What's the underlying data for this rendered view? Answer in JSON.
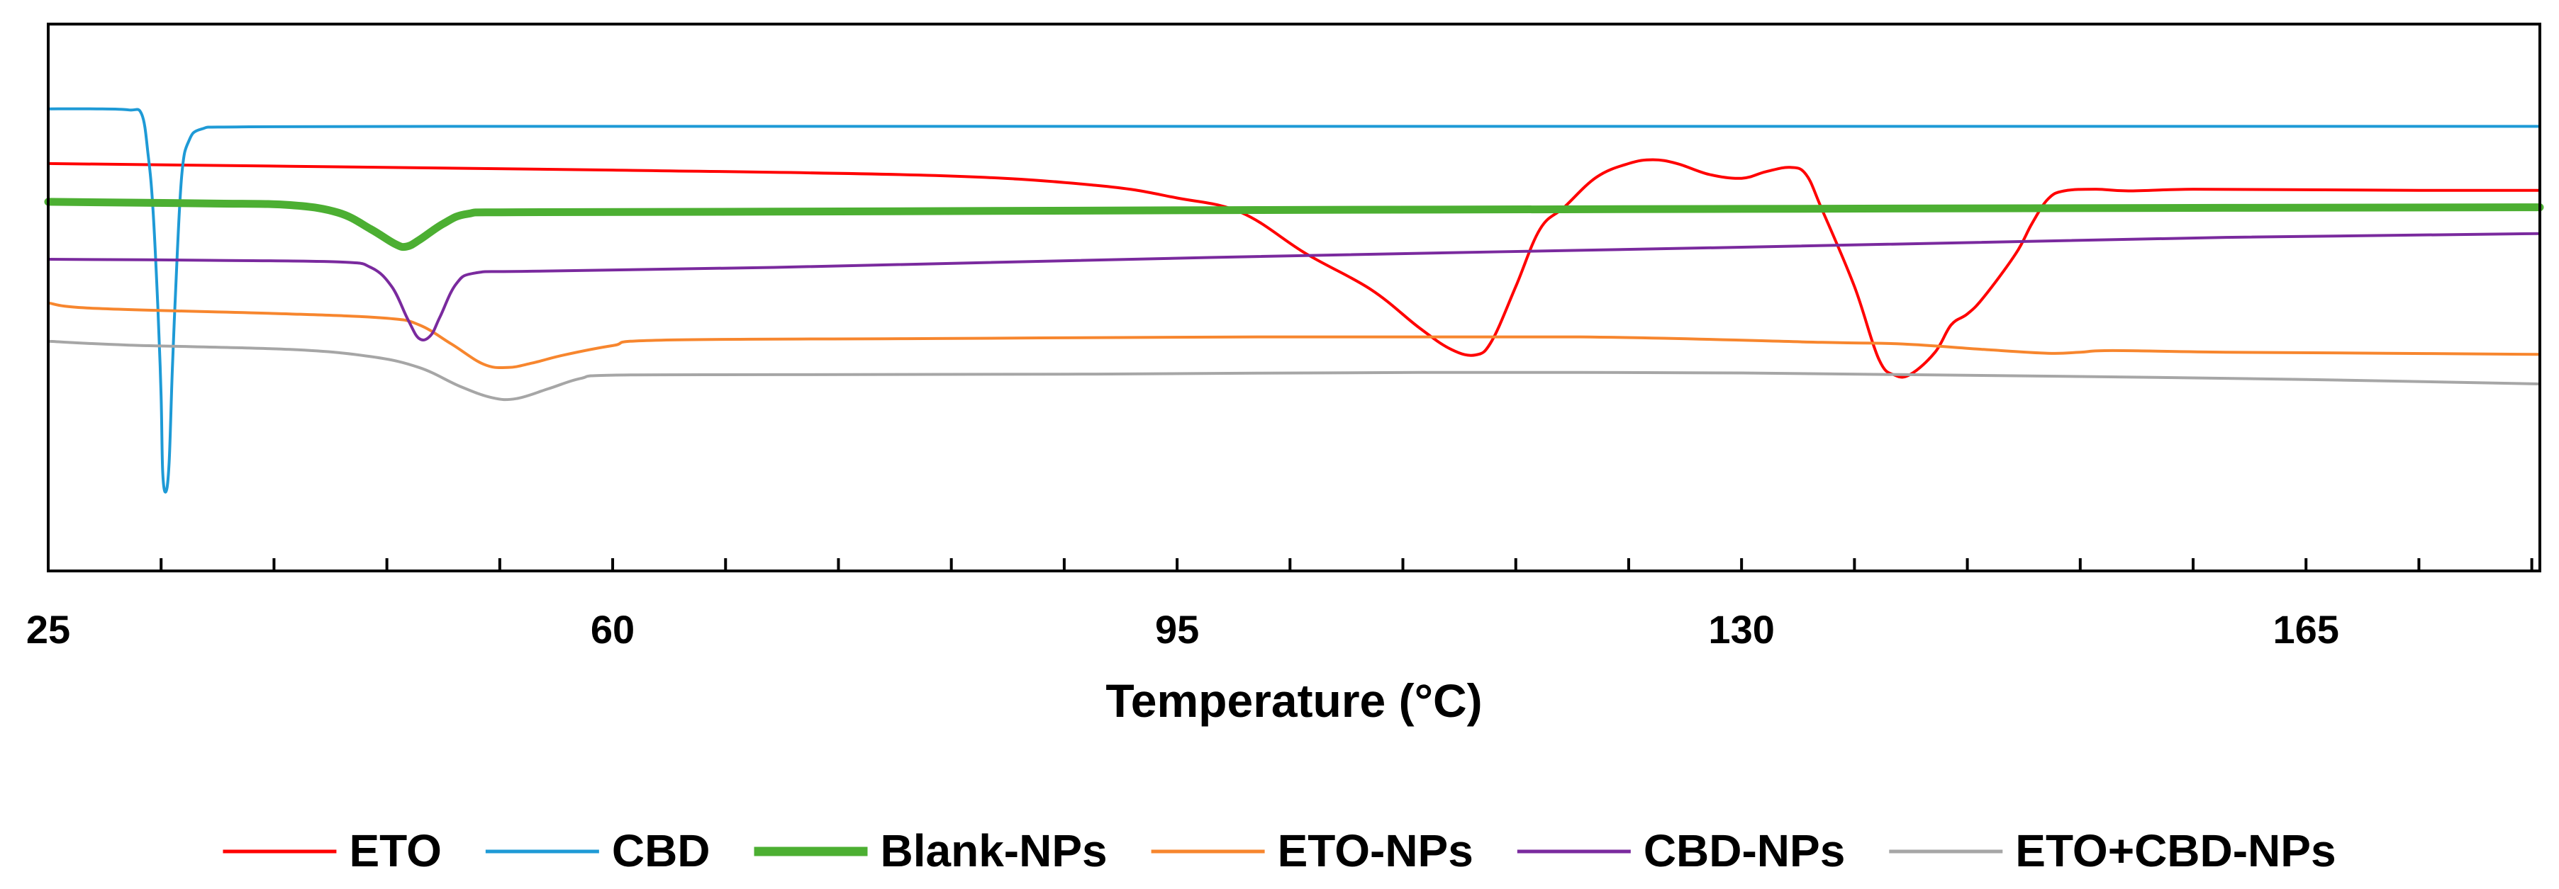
{
  "chart_data": {
    "type": "line",
    "title": "",
    "xlabel": "Temperature (°C)",
    "ylabel": "",
    "xlim": [
      25,
      179.5
    ],
    "ylim": [
      0,
      100
    ],
    "x_ticks": [
      25,
      60,
      95,
      130,
      165
    ],
    "minor_tick_step": 7,
    "grid": false,
    "legend_position": "bottom",
    "series": [
      {
        "name": "ETO",
        "color": "#ff0000",
        "weight": "normal",
        "points": [
          [
            25,
            74.5
          ],
          [
            40,
            74
          ],
          [
            60,
            73.3
          ],
          [
            80,
            72.3
          ],
          [
            90,
            70.5
          ],
          [
            95,
            68.2
          ],
          [
            99,
            65.5
          ],
          [
            103,
            58
          ],
          [
            107,
            51.5
          ],
          [
            110,
            44.5
          ],
          [
            112,
            40.5
          ],
          [
            113.5,
            39.5
          ],
          [
            114.5,
            42
          ],
          [
            116,
            52
          ],
          [
            117.5,
            62.5
          ],
          [
            119,
            66.5
          ],
          [
            121,
            72
          ],
          [
            123,
            74.5
          ],
          [
            124.5,
            75.2
          ],
          [
            126,
            74.5
          ],
          [
            128,
            72.5
          ],
          [
            130,
            71.8
          ],
          [
            131.5,
            73
          ],
          [
            133,
            73.8
          ],
          [
            134,
            72.5
          ],
          [
            135,
            66
          ],
          [
            137,
            52
          ],
          [
            138.5,
            38.8
          ],
          [
            139.5,
            35.8
          ],
          [
            140.5,
            36
          ],
          [
            142,
            40
          ],
          [
            143,
            45
          ],
          [
            144,
            47
          ],
          [
            145,
            50
          ],
          [
            147,
            58
          ],
          [
            148,
            63.5
          ],
          [
            149,
            68
          ],
          [
            150,
            69.5
          ],
          [
            152,
            69.8
          ],
          [
            154,
            69.5
          ],
          [
            158,
            69.8
          ],
          [
            165,
            69.7
          ],
          [
            172,
            69.6
          ],
          [
            179.5,
            69.6
          ]
        ]
      },
      {
        "name": "CBD",
        "color": "#1e9ad6",
        "weight": "normal",
        "points": [
          [
            25,
            84.5
          ],
          [
            28,
            84.5
          ],
          [
            30,
            84.3
          ],
          [
            30.8,
            83.5
          ],
          [
            31.2,
            76
          ],
          [
            31.5,
            66
          ],
          [
            31.8,
            48
          ],
          [
            32,
            32
          ],
          [
            32.1,
            18
          ],
          [
            32.3,
            14.5
          ],
          [
            32.5,
            20
          ],
          [
            32.7,
            37
          ],
          [
            33,
            58
          ],
          [
            33.3,
            73
          ],
          [
            33.7,
            78.5
          ],
          [
            34.5,
            80.8
          ],
          [
            37,
            81.2
          ],
          [
            50,
            81.3
          ],
          [
            80,
            81.3
          ],
          [
            120,
            81.3
          ],
          [
            179.5,
            81.3
          ]
        ]
      },
      {
        "name": "Blank-NPs",
        "color": "#4caf32",
        "weight": "thick",
        "points": [
          [
            25,
            67.5
          ],
          [
            35,
            67.2
          ],
          [
            40,
            66.9
          ],
          [
            43,
            65.5
          ],
          [
            45,
            62.5
          ],
          [
            46.5,
            59.8
          ],
          [
            47.2,
            59.3
          ],
          [
            48,
            60.5
          ],
          [
            49.5,
            63.5
          ],
          [
            51,
            65.3
          ],
          [
            54,
            65.6
          ],
          [
            70,
            65.7
          ],
          [
            100,
            66
          ],
          [
            130,
            66.2
          ],
          [
            160,
            66.4
          ],
          [
            179.5,
            66.5
          ]
        ]
      },
      {
        "name": "ETO-NPs",
        "color": "#f7862e",
        "weight": "normal",
        "points": [
          [
            25,
            49
          ],
          [
            28,
            48
          ],
          [
            40,
            47
          ],
          [
            46,
            46.2
          ],
          [
            48,
            45
          ],
          [
            50,
            41.5
          ],
          [
            52,
            37.8
          ],
          [
            53.5,
            37.2
          ],
          [
            55,
            38
          ],
          [
            57,
            39.5
          ],
          [
            60,
            41.2
          ],
          [
            63,
            42.2
          ],
          [
            80,
            42.5
          ],
          [
            100,
            42.8
          ],
          [
            120,
            42.8
          ],
          [
            135,
            41.8
          ],
          [
            140,
            41.5
          ],
          [
            145,
            40.5
          ],
          [
            149,
            39.8
          ],
          [
            151,
            40
          ],
          [
            153,
            40.3
          ],
          [
            160,
            40
          ],
          [
            170,
            39.8
          ],
          [
            179.5,
            39.6
          ]
        ]
      },
      {
        "name": "CBD-NPs",
        "color": "#7a2a9e",
        "weight": "normal",
        "points": [
          [
            25,
            57
          ],
          [
            35,
            56.8
          ],
          [
            43,
            56.5
          ],
          [
            45,
            55.5
          ],
          [
            46.3,
            52
          ],
          [
            47.3,
            46
          ],
          [
            48,
            42.5
          ],
          [
            48.7,
            43
          ],
          [
            49.3,
            46.5
          ],
          [
            50.3,
            52.5
          ],
          [
            51.5,
            54.5
          ],
          [
            55,
            54.8
          ],
          [
            70,
            55.5
          ],
          [
            100,
            57.5
          ],
          [
            130,
            59.2
          ],
          [
            160,
            61
          ],
          [
            179.5,
            61.7
          ]
        ]
      },
      {
        "name": "ETO+CBD-NPs",
        "color": "#a6a6a6",
        "weight": "normal",
        "points": [
          [
            25,
            42
          ],
          [
            30,
            41.3
          ],
          [
            40,
            40.5
          ],
          [
            45,
            39.2
          ],
          [
            48,
            37.2
          ],
          [
            50.5,
            33.8
          ],
          [
            52.5,
            31.7
          ],
          [
            54,
            31.5
          ],
          [
            56,
            33.3
          ],
          [
            58,
            35.2
          ],
          [
            60,
            35.8
          ],
          [
            70,
            35.9
          ],
          [
            90,
            36
          ],
          [
            110,
            36.3
          ],
          [
            130,
            36.2
          ],
          [
            150,
            35.6
          ],
          [
            165,
            35
          ],
          [
            179.5,
            34.2
          ]
        ]
      }
    ]
  }
}
